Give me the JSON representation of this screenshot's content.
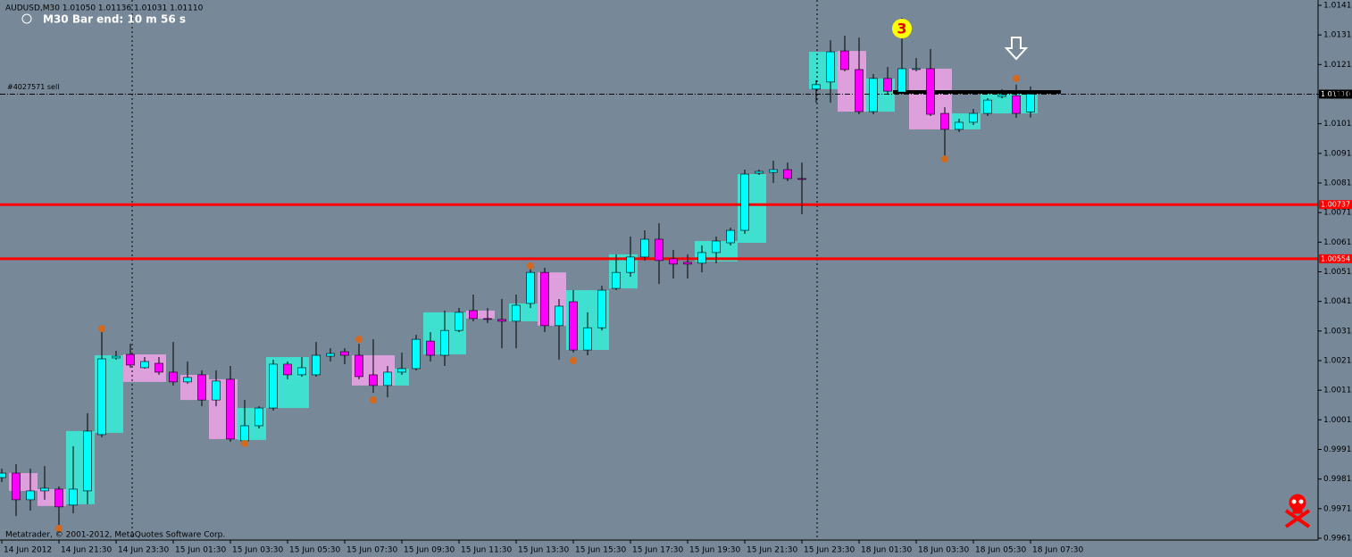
{
  "chart_data": {
    "type": "candlestick",
    "header": "AUDUSD,M30  1.01050 1.01136 1.01031 1.01110",
    "timer": "M30 Bar end: 10 m 56 s",
    "footer": "Metatrader, © 2001-2012, MetaQuotes Software Corp.",
    "annotation": "3",
    "categories": [
      "14 Jun 2012",
      null,
      null,
      null,
      "14 Jun 21:30",
      null,
      null,
      null,
      "14 Jun 23:30",
      null,
      null,
      null,
      "15 Jun 01:30",
      null,
      null,
      null,
      "15 Jun 03:30",
      null,
      null,
      null,
      "15 Jun 05:30",
      null,
      null,
      null,
      "15 Jun 07:30",
      null,
      null,
      null,
      "15 Jun 09:30",
      null,
      null,
      null,
      "15 Jun 11:30",
      null,
      null,
      null,
      "15 Jun 13:30",
      null,
      null,
      null,
      "15 Jun 15:30",
      null,
      null,
      null,
      "15 Jun 17:30",
      null,
      null,
      null,
      "15 Jun 19:30",
      null,
      null,
      null,
      "15 Jun 21:30",
      null,
      null,
      null,
      "15 Jun 23:30",
      null,
      null,
      null,
      "18 Jun 01:30",
      null,
      null,
      null,
      "18 Jun 03:30",
      null,
      null,
      null,
      "18 Jun 05:30",
      null,
      null,
      null,
      "18 Jun 07:30"
    ],
    "open": [
      0.99815,
      0.9983,
      0.9974,
      0.9977,
      0.99776,
      0.99722,
      0.9977,
      0.9996,
      1.00219,
      1.00231,
      1.00186,
      1.00201,
      1.00171,
      1.00138,
      1.00162,
      1.00077,
      1.00147,
      0.99939,
      0.9999,
      1.0005,
      1.00198,
      1.00162,
      1.00162,
      1.00225,
      1.0024,
      1.00228,
      1.00162,
      1.00126,
      1.00171,
      1.00183,
      1.00276,
      1.00228,
      1.00312,
      1.00379,
      1.00352,
      1.00349,
      1.00343,
      1.00403,
      1.00508,
      1.00328,
      1.00409,
      1.00246,
      1.00321,
      1.00454,
      1.00508,
      1.0056,
      1.0062,
      1.00554,
      1.00542,
      1.00539,
      1.00575,
      1.00608,
      1.0065,
      1.00843,
      1.00846,
      1.00855,
      1.00825,
      1.01127,
      1.01151,
      1.01256,
      1.01193,
      1.01051,
      1.01163,
      1.01117,
      1.01193,
      1.01196,
      1.01045,
      1.00991,
      1.01015,
      1.01045,
      1.01102,
      1.01105,
      1.0105
    ],
    "high": [
      0.99845,
      0.9986,
      0.99845,
      0.99854,
      0.99785,
      0.99921,
      1.00032,
      1.00321,
      1.00243,
      1.00267,
      1.00222,
      1.00222,
      1.00273,
      1.00207,
      1.00177,
      1.00177,
      1.00192,
      1.00077,
      1.00056,
      1.00213,
      1.00207,
      1.00222,
      1.00273,
      1.00252,
      1.00252,
      1.00267,
      1.00282,
      1.00192,
      1.00237,
      1.00297,
      1.00306,
      1.00379,
      1.00388,
      1.00433,
      1.00388,
      1.00418,
      1.00433,
      1.0053,
      1.00524,
      1.00418,
      1.00448,
      1.00373,
      1.00463,
      1.00569,
      1.00629,
      1.0065,
      1.00674,
      1.00584,
      1.00569,
      1.00599,
      1.00629,
      1.00659,
      1.00855,
      1.00855,
      1.00885,
      1.00879,
      1.00879,
      1.01157,
      1.01292,
      1.01307,
      1.01301,
      1.01178,
      1.01202,
      1.01368,
      1.01232,
      1.01262,
      1.01066,
      1.01027,
      1.0106,
      1.01096,
      1.01127,
      1.01142,
      1.01136
    ],
    "low": [
      0.998,
      0.99685,
      0.99703,
      0.9974,
      0.99634,
      0.99694,
      0.99725,
      0.99951,
      1.00213,
      1.00186,
      1.00183,
      1.00162,
      1.00126,
      1.00132,
      1.00056,
      1.00056,
      0.99936,
      0.99927,
      0.99981,
      1.00041,
      1.00147,
      1.00156,
      1.00156,
      1.00207,
      1.00198,
      1.00147,
      1.00101,
      1.00086,
      1.00162,
      1.00177,
      1.00207,
      1.00192,
      1.00306,
      1.00343,
      1.00337,
      1.00252,
      1.00252,
      1.00388,
      1.00306,
      1.00213,
      1.00237,
      1.00228,
      1.00312,
      1.00448,
      1.00493,
      1.00548,
      1.00469,
      1.00487,
      1.00487,
      1.00508,
      1.00539,
      1.00599,
      1.00638,
      1.00837,
      1.0081,
      1.00816,
      1.00704,
      1.01081,
      1.01081,
      1.01187,
      1.01042,
      1.01042,
      1.01111,
      1.01111,
      1.01187,
      1.01036,
      1.00891,
      1.00982,
      1.01006,
      1.01036,
      1.01096,
      1.0103,
      1.01031
    ],
    "close": [
      0.9983,
      0.9974,
      0.9977,
      0.99779,
      0.99716,
      0.99776,
      0.99972,
      1.00216,
      1.00225,
      1.00195,
      1.00207,
      1.00171,
      1.00138,
      1.00153,
      1.00077,
      1.00141,
      0.99945,
      0.9999,
      1.0005,
      1.00198,
      1.00162,
      1.00186,
      1.00228,
      1.00234,
      1.00228,
      1.00156,
      1.00126,
      1.00171,
      1.00183,
      1.00282,
      1.00228,
      1.00312,
      1.00373,
      1.00352,
      1.00349,
      1.00343,
      1.00397,
      1.00508,
      1.00328,
      1.00394,
      1.00246,
      1.00321,
      1.00448,
      1.00508,
      1.0056,
      1.0062,
      1.00548,
      1.00536,
      1.00536,
      1.00575,
      1.00614,
      1.0065,
      1.0084,
      1.00849,
      1.00855,
      1.00825,
      1.00822,
      1.01142,
      1.01253,
      1.01193,
      1.01051,
      1.01163,
      1.0112,
      1.01196,
      1.01196,
      1.01042,
      1.00991,
      1.01015,
      1.01045,
      1.0109,
      1.01108,
      1.01045,
      1.0111
    ],
    "up_color": "#00ffff",
    "down_color": "#ff00ff",
    "wick_color": "#000000",
    "zones": [
      {
        "start": 1,
        "end": 2,
        "top": 0.9983,
        "bottom": 0.9977,
        "color": "#dda0dd"
      },
      {
        "start": 3,
        "end": 4,
        "top": 0.99776,
        "bottom": 0.99719,
        "color": "#dda0dd"
      },
      {
        "start": 5,
        "end": 6,
        "top": 0.99972,
        "bottom": 0.99725,
        "color": "#40e0d0"
      },
      {
        "start": 7,
        "end": 8,
        "top": 1.00228,
        "bottom": 0.99966,
        "color": "#40e0d0"
      },
      {
        "start": 9,
        "end": 11,
        "top": 1.00231,
        "bottom": 1.00138,
        "color": "#dda0dd"
      },
      {
        "start": 13,
        "end": 14,
        "top": 1.00162,
        "bottom": 1.00077,
        "color": "#dda0dd"
      },
      {
        "start": 15,
        "end": 16,
        "top": 1.00147,
        "bottom": 0.99945,
        "color": "#dda0dd"
      },
      {
        "start": 17,
        "end": 18,
        "top": 1.0005,
        "bottom": 0.99942,
        "color": "#40e0d0"
      },
      {
        "start": 19,
        "end": 21,
        "top": 1.00222,
        "bottom": 1.0005,
        "color": "#40e0d0"
      },
      {
        "start": 25,
        "end": 27,
        "top": 1.00228,
        "bottom": 1.00126,
        "color": "#dda0dd"
      },
      {
        "start": 28,
        "end": 28,
        "top": 1.00183,
        "bottom": 1.00126,
        "color": "#40e0d0"
      },
      {
        "start": 30,
        "end": 32,
        "top": 1.00373,
        "bottom": 1.00231,
        "color": "#40e0d0"
      },
      {
        "start": 33,
        "end": 34,
        "top": 1.00379,
        "bottom": 1.00352,
        "color": "#dda0dd"
      },
      {
        "start": 36,
        "end": 37,
        "top": 1.00403,
        "bottom": 1.00343,
        "color": "#40e0d0"
      },
      {
        "start": 38,
        "end": 39,
        "top": 1.00508,
        "bottom": 1.00328,
        "color": "#dda0dd"
      },
      {
        "start": 40,
        "end": 42,
        "top": 1.00448,
        "bottom": 1.00246,
        "color": "#40e0d0"
      },
      {
        "start": 43,
        "end": 44,
        "top": 1.00569,
        "bottom": 1.00454,
        "color": "#40e0d0"
      },
      {
        "start": 49,
        "end": 51,
        "top": 1.00614,
        "bottom": 1.00545,
        "color": "#40e0d0"
      },
      {
        "start": 52,
        "end": 53,
        "top": 1.0084,
        "bottom": 1.00608,
        "color": "#40e0d0"
      },
      {
        "start": 57,
        "end": 58,
        "top": 1.01253,
        "bottom": 1.01127,
        "color": "#40e0d0"
      },
      {
        "start": 59,
        "end": 60,
        "top": 1.01256,
        "bottom": 1.01051,
        "color": "#dda0dd"
      },
      {
        "start": 61,
        "end": 62,
        "top": 1.01163,
        "bottom": 1.01051,
        "color": "#40e0d0"
      },
      {
        "start": 64,
        "end": 66,
        "top": 1.01196,
        "bottom": 1.00991,
        "color": "#dda0dd"
      },
      {
        "start": 67,
        "end": 68,
        "top": 1.01045,
        "bottom": 1.00991,
        "color": "#40e0d0"
      },
      {
        "start": 69,
        "end": 72,
        "top": 1.01117,
        "bottom": 1.01045,
        "color": "#40e0d0"
      }
    ],
    "fractals": [
      {
        "index": 4,
        "value": 0.99643
      },
      {
        "index": 7,
        "value": 1.00318
      },
      {
        "index": 17,
        "value": 0.9993
      },
      {
        "index": 25,
        "value": 1.00282
      },
      {
        "index": 26,
        "value": 1.00077
      },
      {
        "index": 37,
        "value": 1.0053
      },
      {
        "index": 40,
        "value": 1.0021
      },
      {
        "index": 66,
        "value": 1.00891
      },
      {
        "index": 71,
        "value": 1.01163
      }
    ],
    "fractal_color": "#d2691e",
    "levels": [
      {
        "value": 1.00737,
        "label": "1.00737",
        "color": "#ff0000"
      },
      {
        "value": 1.00554,
        "label": "1.00554",
        "color": "#ff0000"
      }
    ],
    "order": {
      "value": 1.0111,
      "label": "#4027571 sell"
    },
    "bid": {
      "value": 1.0111,
      "label": "1.01110"
    },
    "ylim": [
      0.99604,
      1.01428
    ],
    "yticks": [
      {
        "value": 1.0141,
        "label": "1.01410"
      },
      {
        "value": 1.0131,
        "label": "1.01310"
      },
      {
        "value": 1.0121,
        "label": "1.01210"
      },
      {
        "value": 1.0111,
        "label": "1.01110"
      },
      {
        "value": 1.0101,
        "label": "1.01010"
      },
      {
        "value": 1.0091,
        "label": "1.00910"
      },
      {
        "value": 1.0081,
        "label": "1.00810"
      },
      {
        "value": 1.0071,
        "label": "1.00710"
      },
      {
        "value": 1.0061,
        "label": "1.00610"
      },
      {
        "value": 1.0051,
        "label": "1.00510"
      },
      {
        "value": 1.0041,
        "label": "1.00410"
      },
      {
        "value": 1.0031,
        "label": "1.00310"
      },
      {
        "value": 1.0021,
        "label": "1.00210"
      },
      {
        "value": 1.0011,
        "label": "1.00110"
      },
      {
        "value": 1.0001,
        "label": "1.00010"
      },
      {
        "value": 0.9991,
        "label": "0.99910"
      },
      {
        "value": 0.9981,
        "label": "0.99810"
      },
      {
        "value": 0.9971,
        "label": "0.99710"
      },
      {
        "value": 0.9961,
        "label": "0.99610"
      }
    ]
  }
}
